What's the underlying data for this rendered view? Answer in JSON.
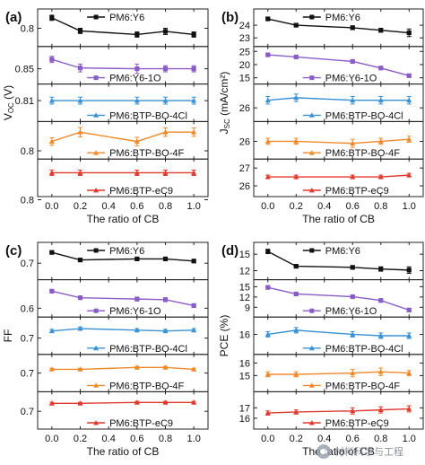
{
  "chart_data": [
    {
      "type": "line",
      "panel_label": "(a)",
      "ylabel": "V_OC (V)",
      "xlabel": "The ratio of CB",
      "x": [
        0.0,
        0.2,
        0.6,
        0.8,
        1.0
      ],
      "xticks": [
        "0.0",
        "0.2",
        "0.4",
        "0.6",
        "0.8",
        "1.0"
      ],
      "xlim": [
        -0.1,
        1.1
      ],
      "series": [
        {
          "name": "PM6:Y6",
          "color": "#111111",
          "marker": "square",
          "values": [
            0.82,
            0.795,
            0.788,
            0.794,
            0.788
          ],
          "errors": [
            0.005,
            0.005,
            0.005,
            0.006,
            0.005
          ],
          "ylim": [
            0.772,
            0.83
          ],
          "yticks": [
            0.8
          ],
          "ytick_labels": [
            "0.8"
          ]
        },
        {
          "name": "PM6:Y6-1O",
          "color": "#8a5cc8",
          "marker": "square",
          "values": [
            0.862,
            0.851,
            0.85,
            0.85,
            0.85
          ],
          "errors": [
            0.004,
            0.005,
            0.006,
            0.004,
            0.004
          ],
          "ylim": [
            0.835,
            0.874
          ],
          "yticks": [
            0.85
          ],
          "ytick_labels": [
            "0.85"
          ]
        },
        {
          "name": "PM6:BTP-BO-4Cl",
          "color": "#3a92d4",
          "marker": "triangle",
          "values": [
            0.81,
            0.81,
            0.81,
            0.81,
            0.81
          ],
          "errors": [
            0.004,
            0.004,
            0.004,
            0.004,
            0.004
          ],
          "ylim": [
            0.79,
            0.825
          ],
          "yticks": [
            0.81
          ],
          "ytick_labels": [
            "0.81"
          ]
        },
        {
          "name": "PM6:BTP-BO-4F",
          "color": "#ef8a2b",
          "marker": "triangle",
          "values": [
            0.82,
            0.84,
            0.82,
            0.84,
            0.84
          ],
          "errors": [
            0.008,
            0.01,
            0.009,
            0.009,
            0.009
          ],
          "ylim": [
            0.79,
            0.855
          ],
          "yticks": [
            0.8
          ],
          "ytick_labels": [
            "0.8"
          ]
        },
        {
          "name": "PM6:BTP-eC9",
          "color": "#e03a2f",
          "marker": "triangle",
          "values": [
            0.84,
            0.84,
            0.84,
            0.84,
            0.84
          ],
          "errors": [
            0.004,
            0.004,
            0.004,
            0.004,
            0.004
          ],
          "ylim": [
            0.81,
            0.855
          ],
          "yticks": [
            0.8
          ],
          "ytick_labels": [
            "0.8"
          ]
        }
      ]
    },
    {
      "type": "line",
      "panel_label": "(b)",
      "ylabel": "J_SC (mA/cm²)",
      "xlabel": "The ratio of CB",
      "x": [
        0.0,
        0.2,
        0.6,
        0.8,
        1.0
      ],
      "xticks": [
        "0.0",
        "0.2",
        "0.4",
        "0.6",
        "0.8",
        "1.0"
      ],
      "xlim": [
        -0.1,
        1.1
      ],
      "series": [
        {
          "name": "PM6:Y6",
          "color": "#111111",
          "marker": "square",
          "values": [
            24.5,
            24.0,
            23.8,
            23.6,
            23.4
          ],
          "errors": [
            0.1,
            0.1,
            0.15,
            0.15,
            0.3
          ],
          "ylim": [
            22.6,
            25.0
          ],
          "yticks": [
            24,
            23
          ],
          "ytick_labels": [
            "24",
            "23"
          ]
        },
        {
          "name": "PM6:Y6-1O",
          "color": "#8a5cc8",
          "marker": "square",
          "values": [
            23.7,
            22.9,
            21.2,
            18.7,
            15.8
          ],
          "errors": [
            0.3,
            0.3,
            0.3,
            0.3,
            0.5
          ],
          "ylim": [
            14.0,
            25.5
          ],
          "yticks": [
            25,
            20,
            15
          ],
          "ytick_labels": [
            "25",
            "20",
            "15"
          ]
        },
        {
          "name": "PM6:BTP-BO-4Cl",
          "color": "#3a92d4",
          "marker": "triangle",
          "values": [
            26.3,
            26.4,
            26.3,
            26.3,
            26.3
          ],
          "errors": [
            0.15,
            0.15,
            0.15,
            0.15,
            0.15
          ],
          "ylim": [
            25.6,
            26.8
          ],
          "yticks": [
            26
          ],
          "ytick_labels": [
            "26"
          ]
        },
        {
          "name": "PM6:BTP-BO-4F",
          "color": "#ef8a2b",
          "marker": "triangle",
          "values": [
            26.0,
            26.0,
            25.9,
            26.0,
            26.1
          ],
          "errors": [
            0.15,
            0.15,
            0.2,
            0.15,
            0.15
          ],
          "ylim": [
            25.3,
            26.8
          ],
          "yticks": [
            26
          ],
          "ytick_labels": [
            "26"
          ]
        },
        {
          "name": "PM6:BTP-eC9",
          "color": "#e03a2f",
          "marker": "triangle",
          "values": [
            26.5,
            26.5,
            26.5,
            26.5,
            26.6
          ],
          "errors": [
            0.1,
            0.1,
            0.1,
            0.1,
            0.1
          ],
          "ylim": [
            25.6,
            27.3
          ],
          "yticks": [
            27,
            26
          ],
          "ytick_labels": [
            "27",
            "26"
          ]
        }
      ]
    },
    {
      "type": "line",
      "panel_label": "(c)",
      "ylabel": "FF",
      "xlabel": "The ratio of CB",
      "x": [
        0.0,
        0.2,
        0.6,
        0.8,
        1.0
      ],
      "xticks": [
        "0.0",
        "0.2",
        "0.4",
        "0.6",
        "0.8",
        "1.0"
      ],
      "xlim": [
        -0.1,
        1.1
      ],
      "series": [
        {
          "name": "PM6:Y6",
          "color": "#111111",
          "marker": "square",
          "values": [
            0.75,
            0.715,
            0.72,
            0.72,
            0.71
          ],
          "errors": [
            0.005,
            0.008,
            0.006,
            0.006,
            0.006
          ],
          "ylim": [
            0.64,
            0.78
          ],
          "yticks": [
            0.7
          ],
          "ytick_labels": [
            "0.7"
          ]
        },
        {
          "name": "PM6:Y6-1O",
          "color": "#8a5cc8",
          "marker": "square",
          "values": [
            0.73,
            0.68,
            0.67,
            0.665,
            0.62
          ],
          "errors": [
            0.01,
            0.01,
            0.015,
            0.015,
            0.01
          ],
          "ylim": [
            0.56,
            0.79
          ],
          "yticks": [
            0.6
          ],
          "ytick_labels": [
            "0.6"
          ]
        },
        {
          "name": "PM6:BTP-BO-4Cl",
          "color": "#3a92d4",
          "marker": "triangle",
          "values": [
            0.745,
            0.76,
            0.75,
            0.745,
            0.75
          ],
          "errors": [
            0.01,
            0.01,
            0.01,
            0.01,
            0.01
          ],
          "ylim": [
            0.62,
            0.81
          ],
          "yticks": [
            0.7
          ],
          "ytick_labels": [
            "0.7"
          ]
        },
        {
          "name": "PM6:BTP-BO-4F",
          "color": "#ef8a2b",
          "marker": "triangle",
          "values": [
            0.72,
            0.72,
            0.73,
            0.73,
            0.72
          ],
          "errors": [
            0.005,
            0.005,
            0.006,
            0.006,
            0.005
          ],
          "ylim": [
            0.62,
            0.78
          ],
          "yticks": [
            0.7
          ],
          "ytick_labels": [
            "0.7"
          ]
        },
        {
          "name": "PM6:BTP-eC9",
          "color": "#e03a2f",
          "marker": "triangle",
          "values": [
            0.745,
            0.745,
            0.75,
            0.75,
            0.75
          ],
          "errors": [
            0.006,
            0.006,
            0.006,
            0.006,
            0.006
          ],
          "ylim": [
            0.62,
            0.79
          ],
          "yticks": [
            0.7
          ],
          "ytick_labels": [
            "0.7"
          ]
        }
      ]
    },
    {
      "type": "line",
      "panel_label": "(d)",
      "ylabel": "PCE (%)",
      "xlabel": "The ratio of CB",
      "x": [
        0.0,
        0.2,
        0.6,
        0.8,
        1.0
      ],
      "xticks": [
        "0.0",
        "0.2",
        "0.4",
        "0.6",
        "0.8",
        "1.0"
      ],
      "xlim": [
        -0.1,
        1.1
      ],
      "series": [
        {
          "name": "PM6:Y6",
          "color": "#111111",
          "marker": "square",
          "values": [
            15.5,
            12.8,
            12.6,
            12.3,
            12.1
          ],
          "errors": [
            0.4,
            0.3,
            0.3,
            0.4,
            0.6
          ],
          "ylim": [
            11.0,
            16.5
          ],
          "yticks": [
            15,
            12
          ],
          "ytick_labels": [
            "15",
            "12"
          ]
        },
        {
          "name": "PM6:Y6-1O",
          "color": "#8a5cc8",
          "marker": "square",
          "values": [
            14.8,
            12.9,
            12.1,
            11.0,
            8.2
          ],
          "errors": [
            0.3,
            0.3,
            0.3,
            0.3,
            0.4
          ],
          "ylim": [
            7.2,
            16.0
          ],
          "yticks": [
            15,
            12,
            9
          ],
          "ytick_labels": [
            "15",
            "12",
            "9"
          ]
        },
        {
          "name": "PM6:BTP-BO-4Cl",
          "color": "#3a92d4",
          "marker": "triangle",
          "values": [
            16.0,
            16.3,
            16.0,
            15.9,
            15.9
          ],
          "errors": [
            0.2,
            0.2,
            0.2,
            0.2,
            0.2
          ],
          "ylim": [
            14.8,
            17.0
          ],
          "yticks": [
            16
          ],
          "ytick_labels": [
            "16"
          ]
        },
        {
          "name": "PM6:BTP-BO-4F",
          "color": "#ef8a2b",
          "marker": "triangle",
          "values": [
            15.1,
            15.1,
            15.2,
            15.3,
            15.2
          ],
          "errors": [
            0.2,
            0.2,
            0.3,
            0.3,
            0.2
          ],
          "ylim": [
            14.0,
            16.4
          ],
          "yticks": [
            16,
            15
          ],
          "ytick_labels": [
            "16",
            "15"
          ]
        },
        {
          "name": "PM6:BTP-eC9",
          "color": "#e03a2f",
          "marker": "triangle",
          "values": [
            16.5,
            16.6,
            16.7,
            16.8,
            16.9
          ],
          "errors": [
            0.2,
            0.2,
            0.3,
            0.3,
            0.3
          ],
          "ylim": [
            15.3,
            18.2
          ],
          "yticks": [
            17,
            16
          ],
          "ytick_labels": [
            "17",
            "16"
          ]
        }
      ]
    }
  ],
  "watermark": {
    "icon": "wechat-icon",
    "text": "材料科学与工程"
  }
}
